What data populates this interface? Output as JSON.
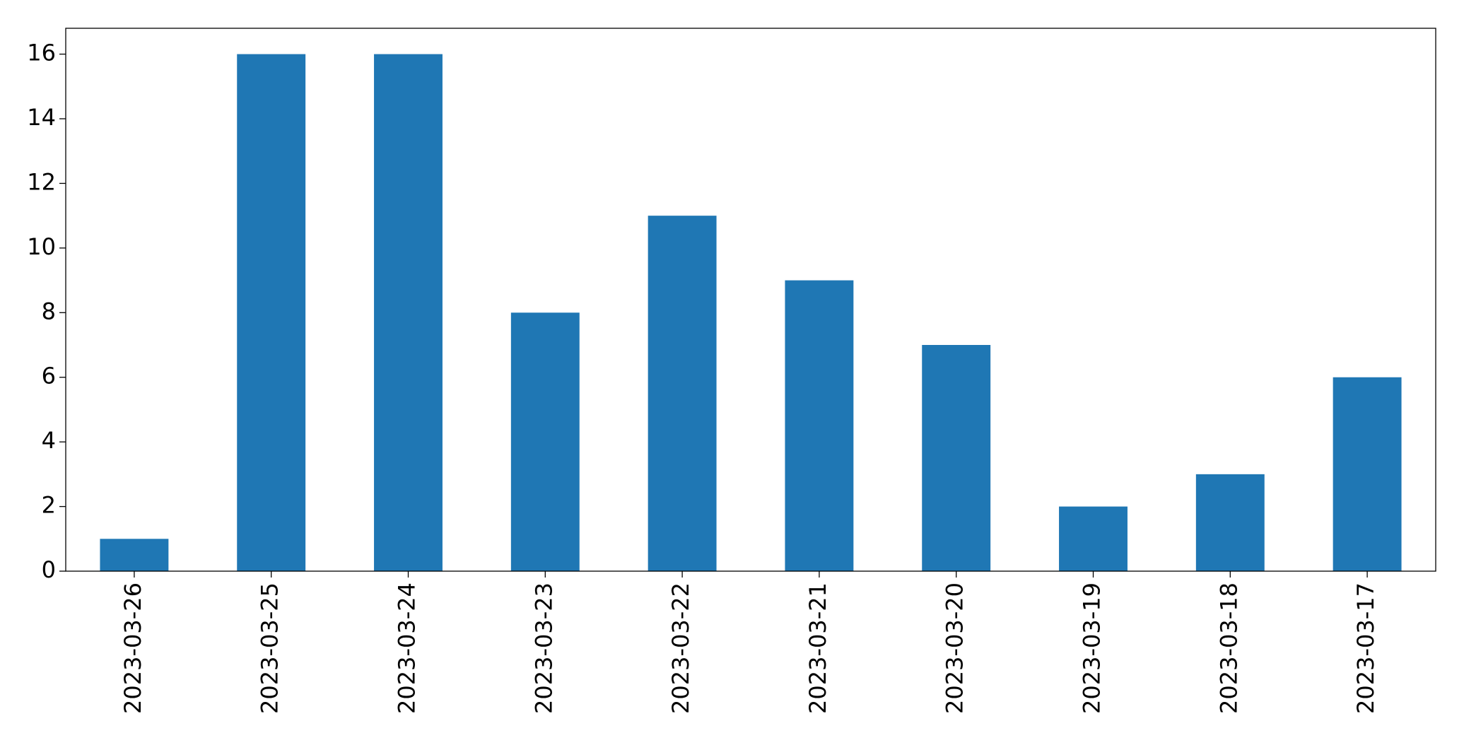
{
  "chart_data": {
    "type": "bar",
    "categories": [
      "2023-03-26",
      "2023-03-25",
      "2023-03-24",
      "2023-03-23",
      "2023-03-22",
      "2023-03-21",
      "2023-03-20",
      "2023-03-19",
      "2023-03-18",
      "2023-03-17"
    ],
    "values": [
      1,
      16,
      16,
      8,
      11,
      9,
      7,
      2,
      3,
      6
    ],
    "color": "#1f77b4",
    "ylim": [
      0,
      16.8
    ],
    "yticks": [
      0,
      2,
      4,
      6,
      8,
      10,
      12,
      14,
      16
    ],
    "grid": false
  }
}
